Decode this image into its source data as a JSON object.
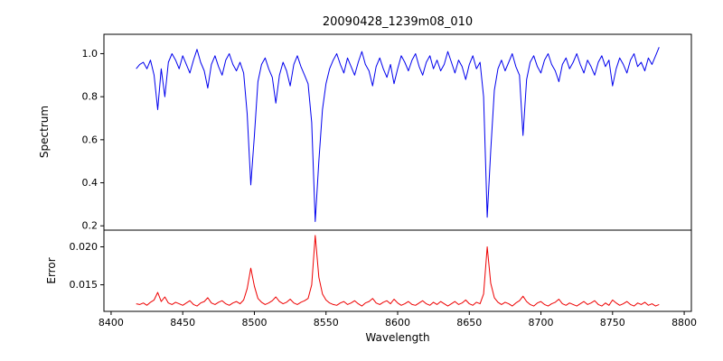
{
  "chart_data": {
    "type": "line",
    "title": "20090428_1239m08_010",
    "xlabel": "Wavelength",
    "xlim": [
      8395,
      8805
    ],
    "x_ticks": [
      8400,
      8450,
      8500,
      8550,
      8600,
      8650,
      8700,
      8750,
      8800
    ],
    "x_start": 8417.5,
    "x_step": 2.5,
    "x_end": 8782.5,
    "grid": false,
    "legend": "none",
    "panels": [
      {
        "name": "spectrum",
        "ylabel": "Spectrum",
        "color": "#0000ee",
        "ylim": [
          0.18,
          1.09
        ],
        "y_ticks": [
          {
            "value": 0.2,
            "label": "0.2"
          },
          {
            "value": 0.4,
            "label": "0.4"
          },
          {
            "value": 0.6,
            "label": "0.6"
          },
          {
            "value": 0.8,
            "label": "0.8"
          },
          {
            "value": 1.0,
            "label": "1.0"
          }
        ],
        "values": [
          0.93,
          0.95,
          0.96,
          0.93,
          0.97,
          0.9,
          0.74,
          0.93,
          0.8,
          0.96,
          1.0,
          0.97,
          0.93,
          0.99,
          0.95,
          0.91,
          0.97,
          1.02,
          0.96,
          0.92,
          0.84,
          0.95,
          0.99,
          0.94,
          0.9,
          0.97,
          1.0,
          0.95,
          0.92,
          0.96,
          0.91,
          0.72,
          0.39,
          0.62,
          0.87,
          0.95,
          0.98,
          0.93,
          0.89,
          0.77,
          0.9,
          0.96,
          0.92,
          0.85,
          0.95,
          0.99,
          0.94,
          0.9,
          0.86,
          0.68,
          0.22,
          0.5,
          0.74,
          0.86,
          0.93,
          0.97,
          1.0,
          0.95,
          0.91,
          0.98,
          0.94,
          0.9,
          0.96,
          1.01,
          0.95,
          0.92,
          0.85,
          0.94,
          0.98,
          0.93,
          0.89,
          0.95,
          0.86,
          0.93,
          0.99,
          0.96,
          0.92,
          0.97,
          1.0,
          0.94,
          0.9,
          0.96,
          0.99,
          0.93,
          0.97,
          0.92,
          0.95,
          1.01,
          0.96,
          0.91,
          0.97,
          0.94,
          0.88,
          0.95,
          0.99,
          0.93,
          0.96,
          0.8,
          0.24,
          0.55,
          0.83,
          0.93,
          0.97,
          0.92,
          0.96,
          1.0,
          0.94,
          0.9,
          0.62,
          0.88,
          0.96,
          0.99,
          0.94,
          0.91,
          0.97,
          1.0,
          0.95,
          0.92,
          0.87,
          0.95,
          0.98,
          0.93,
          0.96,
          1.0,
          0.95,
          0.91,
          0.97,
          0.94,
          0.9,
          0.96,
          0.99,
          0.94,
          0.97,
          0.85,
          0.93,
          0.98,
          0.95,
          0.91,
          0.97,
          1.0,
          0.94,
          0.96,
          0.92,
          0.98,
          0.95,
          0.99,
          1.03
        ]
      },
      {
        "name": "error",
        "ylabel": "Error",
        "color": "#ee0000",
        "ylim": [
          0.0115,
          0.0222
        ],
        "y_ticks": [
          {
            "value": 0.015,
            "label": "0.015"
          },
          {
            "value": 0.02,
            "label": "0.020"
          }
        ],
        "values": [
          0.0125,
          0.0124,
          0.0126,
          0.0123,
          0.0127,
          0.013,
          0.014,
          0.0128,
          0.0134,
          0.0126,
          0.0124,
          0.0127,
          0.0125,
          0.0123,
          0.0126,
          0.0129,
          0.0124,
          0.0122,
          0.0126,
          0.0128,
          0.0133,
          0.0126,
          0.0124,
          0.0127,
          0.0129,
          0.0125,
          0.0123,
          0.0126,
          0.0128,
          0.0125,
          0.013,
          0.0145,
          0.0172,
          0.0148,
          0.0132,
          0.0127,
          0.0124,
          0.0126,
          0.0129,
          0.0134,
          0.0128,
          0.0125,
          0.0127,
          0.0131,
          0.0126,
          0.0124,
          0.0127,
          0.0129,
          0.0132,
          0.015,
          0.0215,
          0.016,
          0.0138,
          0.013,
          0.0126,
          0.0124,
          0.0123,
          0.0126,
          0.0128,
          0.0124,
          0.0126,
          0.0129,
          0.0125,
          0.0122,
          0.0126,
          0.0128,
          0.0132,
          0.0126,
          0.0124,
          0.0127,
          0.0129,
          0.0125,
          0.0131,
          0.0126,
          0.0123,
          0.0125,
          0.0128,
          0.0124,
          0.0123,
          0.0126,
          0.0129,
          0.0125,
          0.0123,
          0.0127,
          0.0124,
          0.0128,
          0.0125,
          0.0122,
          0.0125,
          0.0128,
          0.0124,
          0.0126,
          0.013,
          0.0125,
          0.0123,
          0.0127,
          0.0125,
          0.0138,
          0.02,
          0.0152,
          0.0133,
          0.0127,
          0.0124,
          0.0127,
          0.0125,
          0.0122,
          0.0126,
          0.0129,
          0.0135,
          0.0128,
          0.0124,
          0.0122,
          0.0126,
          0.0128,
          0.0124,
          0.0122,
          0.0125,
          0.0127,
          0.0131,
          0.0125,
          0.0123,
          0.0126,
          0.0124,
          0.0122,
          0.0125,
          0.0128,
          0.0124,
          0.0126,
          0.0129,
          0.0124,
          0.0122,
          0.0126,
          0.0123,
          0.013,
          0.0126,
          0.0123,
          0.0125,
          0.0128,
          0.0124,
          0.0122,
          0.0126,
          0.0124,
          0.0127,
          0.0123,
          0.0125,
          0.0122,
          0.0124
        ]
      }
    ]
  }
}
